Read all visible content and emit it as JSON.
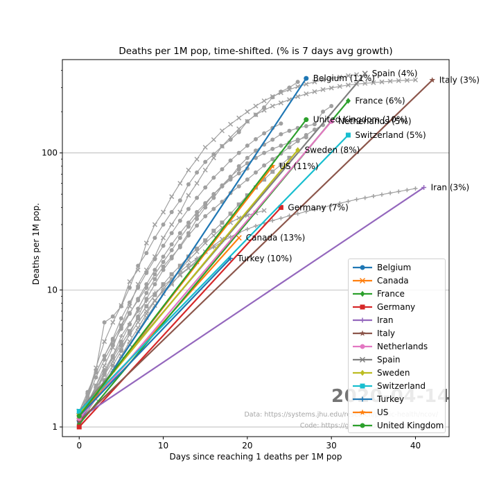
{
  "chart_data": {
    "type": "line",
    "title": "Deaths per 1M pop, time-shifted. (% is 7 days avg growth)",
    "xlabel": "Days since reaching 1 deaths per 1M pop",
    "ylabel": "Deaths per 1M pop.",
    "x_ticks": [
      0,
      10,
      20,
      30,
      40
    ],
    "y_ticks": [
      "1",
      "10",
      "100"
    ],
    "y_scale": "log",
    "xlim": [
      -2,
      44
    ],
    "ylim": [
      0.85,
      480
    ],
    "grid": "horizontal",
    "legend_position": "lower-right",
    "watermark": "2020-04-14",
    "credit_data": "Data: https://systems.jhu.edu/research/public-health/ncov/",
    "credit_code": "Code: https://github.com/pomber/covid19",
    "highlighted": [
      {
        "name": "Belgium",
        "color": "#1f77b4",
        "marker": "o",
        "start": [
          0,
          1.1
        ],
        "end": [
          27,
          350
        ],
        "label": "Belgium (11%)"
      },
      {
        "name": "Canada",
        "color": "#ff7f0e",
        "marker": "x",
        "start": [
          0,
          1.2
        ],
        "end": [
          19,
          24
        ],
        "label": "Canada (13%)"
      },
      {
        "name": "France",
        "color": "#2ca02c",
        "marker": "d",
        "start": [
          0,
          1.05
        ],
        "end": [
          32,
          240
        ],
        "label": "France (6%)"
      },
      {
        "name": "Germany",
        "color": "#d62728",
        "marker": "s",
        "start": [
          0,
          1.0
        ],
        "end": [
          24,
          40
        ],
        "label": "Germany (7%)"
      },
      {
        "name": "Iran",
        "color": "#9467bd",
        "marker": "+",
        "start": [
          0,
          1.15
        ],
        "end": [
          41,
          56
        ],
        "label": "Iran (3%)"
      },
      {
        "name": "Italy",
        "color": "#8c564b",
        "marker": "*",
        "start": [
          0,
          1.1
        ],
        "end": [
          42,
          340
        ],
        "label": "Italy (3%)"
      },
      {
        "name": "Netherlands",
        "color": "#e377c2",
        "marker": "o",
        "start": [
          0,
          1.15
        ],
        "end": [
          30,
          170
        ],
        "label": "Netherlands (5%)"
      },
      {
        "name": "Spain",
        "color": "#7f7f7f",
        "marker": "x",
        "start": [
          0,
          1.3
        ],
        "end": [
          34,
          380
        ],
        "label": "Spain (4%)"
      },
      {
        "name": "Sweden",
        "color": "#bcbd22",
        "marker": "d",
        "start": [
          0,
          1.25
        ],
        "end": [
          26,
          105
        ],
        "label": "Sweden (8%)"
      },
      {
        "name": "Switzerland",
        "color": "#17becf",
        "marker": "s",
        "start": [
          0,
          1.3
        ],
        "end": [
          32,
          135
        ],
        "label": "Switzerland (5%)"
      },
      {
        "name": "Turkey",
        "color": "#1f77b4",
        "marker": "+",
        "start": [
          0,
          1.2
        ],
        "end": [
          18,
          17
        ],
        "label": "Turkey (10%)"
      },
      {
        "name": "US",
        "color": "#ff7f0e",
        "marker": "*",
        "start": [
          0,
          1.2
        ],
        "end": [
          23,
          80
        ],
        "label": "US (11%)"
      },
      {
        "name": "United Kingdom",
        "color": "#2ca02c",
        "marker": "o",
        "start": [
          0,
          1.2
        ],
        "end": [
          27,
          175
        ],
        "label": "United Kingdom (10%)"
      }
    ],
    "history_series": [
      {
        "marker": "o",
        "values": [
          1.1,
          1.6,
          2.6,
          5.8,
          6.4,
          7.6,
          10.4,
          15.0,
          18.6,
          24.0,
          30.0,
          37.0,
          45.0,
          59.0,
          72.0,
          86.0,
          98.0,
          112.0,
          125.0,
          142.0,
          170.0,
          190.0,
          215.0,
          255.0,
          280.0,
          300.0,
          330.0
        ]
      },
      {
        "marker": "x",
        "values": [
          1.2,
          1.4,
          1.8,
          2.1,
          2.6,
          3.3,
          4.0,
          5.0,
          6.3,
          7.7,
          9.4,
          11.0,
          13.0,
          14.5,
          16.5,
          19.0,
          21.0,
          23.5
        ]
      },
      {
        "marker": "o",
        "values": [
          1.05,
          1.4,
          1.7,
          2.2,
          2.8,
          3.6,
          4.8,
          6.4,
          8.6,
          11.0,
          14.0,
          17.0,
          21.0,
          26.0,
          33.0,
          40.0,
          47.0,
          57.0,
          66.0,
          80.0,
          92.0,
          104.0,
          115.0,
          125.0,
          137.0,
          145.0,
          152.0,
          157.0,
          162.0,
          200.0,
          220.0
        ]
      },
      {
        "marker": "x",
        "values": [
          1.0,
          1.3,
          1.6,
          2.0,
          2.6,
          3.3,
          4.2,
          5.3,
          6.7,
          8.3,
          10.1,
          12.0,
          14.0,
          16.5,
          19.0,
          22.0,
          25.0,
          28.5,
          31.0,
          33.5,
          35.0,
          36.5,
          38.0
        ]
      },
      {
        "marker": "+",
        "values": [
          1.15,
          1.4,
          1.8,
          2.4,
          3.3,
          4.6,
          5.7,
          7.0,
          8.3,
          9.5,
          10.7,
          12.0,
          13.6,
          15.3,
          17.0,
          18.8,
          20.5,
          22.5,
          24.4,
          26.2,
          27.8,
          29.3,
          30.8,
          32.1,
          33.4,
          34.8,
          36.0,
          37.4,
          38.7,
          40.0,
          41.5,
          42.9,
          44.3,
          45.8,
          47.0,
          48.4,
          49.7,
          51.0,
          52.3,
          53.6,
          55.0
        ]
      },
      {
        "marker": "x",
        "values": [
          1.1,
          1.4,
          2.0,
          2.8,
          3.8,
          5.5,
          7.6,
          11.0,
          14.0,
          17.5,
          24.0,
          30.0,
          37.0,
          49.0,
          60.0,
          75.0,
          92.0,
          112.0,
          130.0,
          150.0,
          170.0,
          190.0,
          205.0,
          220.0,
          232.0,
          245.0,
          258.0,
          270.0,
          280.0,
          290.0,
          298.0,
          306.0,
          313.0,
          318.0,
          322.0,
          326.0,
          330.0,
          334.0,
          337.0,
          339.0,
          341.0
        ]
      },
      {
        "marker": "o",
        "values": [
          1.15,
          1.5,
          2.0,
          2.6,
          3.3,
          4.2,
          5.6,
          7.3,
          9.5,
          12.0,
          14.8,
          17.5,
          20.5,
          25.0,
          29.5,
          34.5,
          39.0,
          44.0,
          51.0,
          57.0,
          64.0,
          72.0,
          81.0,
          90.0,
          99.0,
          110.0,
          122.0,
          135.0,
          148.0,
          160.0
        ]
      },
      {
        "marker": "x",
        "values": [
          1.3,
          1.7,
          2.7,
          4.2,
          5.8,
          7.7,
          11.5,
          14.0,
          22.0,
          30.0,
          37.0,
          48.0,
          60.0,
          75.0,
          90.0,
          110.0,
          125.0,
          145.0,
          162.0,
          180.0,
          200.0,
          220.0,
          240.0,
          258.0,
          275.0,
          290.0,
          305.0,
          318.0,
          330.0,
          341.0,
          350.0,
          358.0,
          366.0,
          373.0
        ]
      },
      {
        "marker": "s",
        "values": [
          1.25,
          1.5,
          1.9,
          2.5,
          3.2,
          4.0,
          5.0,
          6.2,
          7.6,
          9.2,
          11.0,
          13.0,
          15.0,
          17.5,
          20.0,
          23.0,
          27.0,
          31.0,
          36.0,
          42.0,
          49.0,
          56.0,
          64.0,
          73.0,
          82.0,
          92.0
        ]
      },
      {
        "marker": "o",
        "values": [
          1.3,
          1.8,
          2.5,
          3.3,
          4.3,
          5.5,
          6.8,
          8.4,
          10.4,
          13.0,
          16.0,
          19.5,
          24.0,
          29.0,
          35.0,
          42.0,
          50.0,
          58.0,
          67.0,
          76.0,
          84.0,
          92.0,
          100.0,
          107.0,
          113.0,
          119.0,
          125.0,
          130.0
        ]
      },
      {
        "marker": "x",
        "values": [
          1.2,
          1.5,
          1.9,
          2.4,
          3.0,
          3.8,
          4.7,
          5.8,
          7.0,
          8.4,
          9.8,
          11.3,
          12.8,
          14.4,
          16.0
        ]
      },
      {
        "marker": "o",
        "values": [
          1.2,
          1.6,
          2.3,
          3.1,
          4.0,
          5.2,
          6.7,
          8.6,
          11.0,
          14.0,
          17.5,
          21.5,
          26.0,
          31.0,
          37.0,
          43.0,
          50.0,
          57.0,
          64.0,
          71.0,
          77.0
        ]
      },
      {
        "marker": "o",
        "values": [
          1.2,
          1.7,
          2.5,
          3.3,
          4.4,
          6.2,
          8.1,
          10.4,
          13.3,
          16.8,
          21.0,
          26.0,
          32.0,
          39.0,
          47.0,
          56.0,
          66.0,
          76.0,
          88.0,
          100.0,
          113.0,
          126.0,
          139.0,
          152.0,
          164.0
        ]
      }
    ]
  }
}
